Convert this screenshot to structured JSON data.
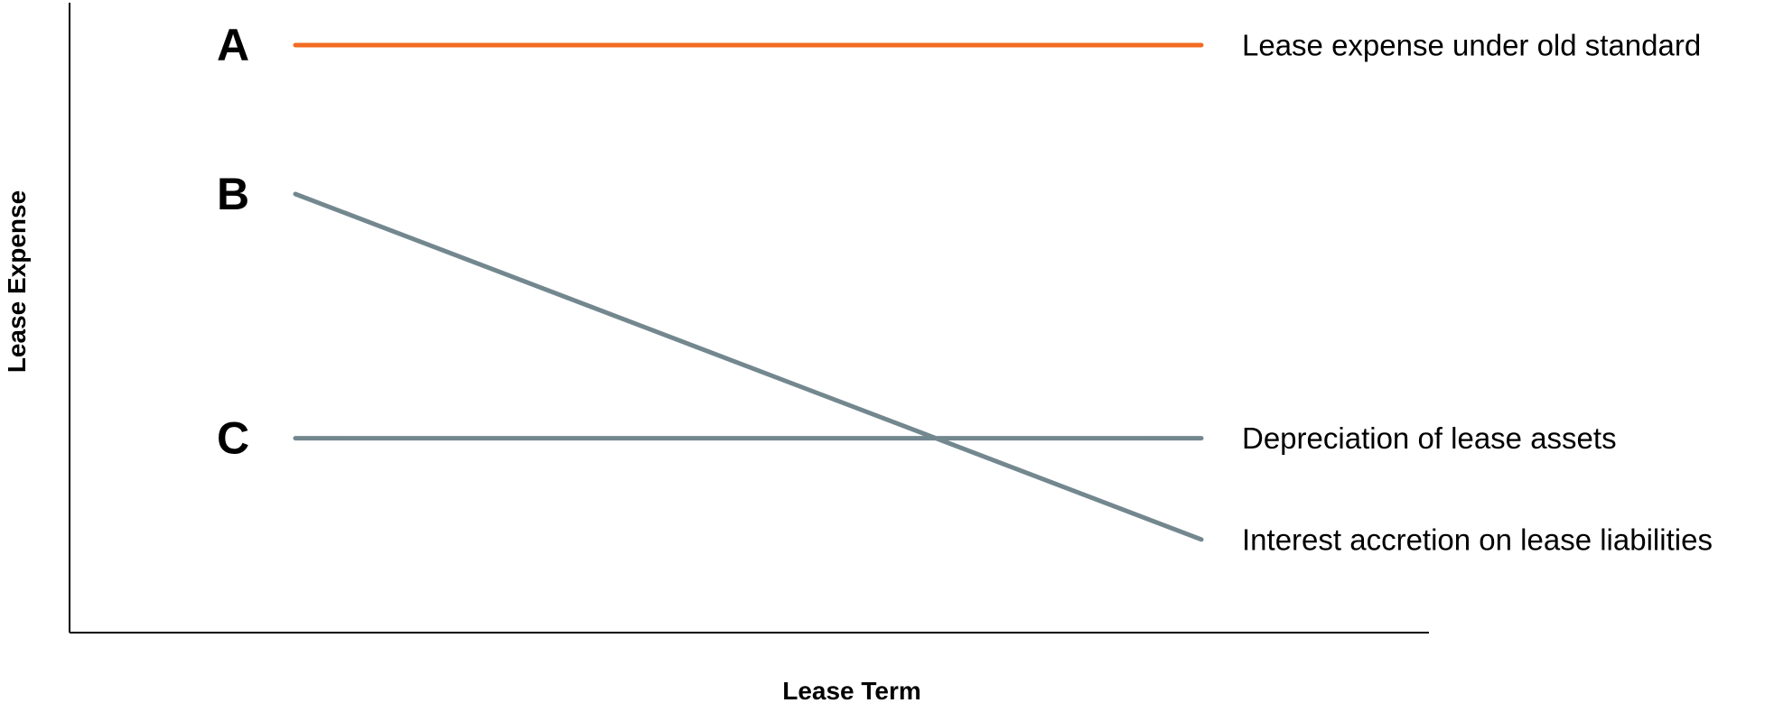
{
  "chart_data": {
    "type": "line",
    "title": "",
    "xlabel": "Lease Term",
    "ylabel": "Lease Expense",
    "grid": false,
    "xlim": [
      0,
      1
    ],
    "ylim": [
      0,
      1
    ],
    "x": [
      0,
      1
    ],
    "series": [
      {
        "marker": "A",
        "label": "Lease expense under old standard",
        "color": "#F26B21",
        "values": [
          0.95,
          0.95
        ]
      },
      {
        "marker": "B",
        "label": "Interest accretion on lease liabilities",
        "color": "#73878F",
        "values": [
          0.7,
          0.12
        ]
      },
      {
        "marker": "C",
        "label": "Depreciation of lease assets",
        "color": "#73878F",
        "values": [
          0.29,
          0.29
        ]
      }
    ]
  }
}
